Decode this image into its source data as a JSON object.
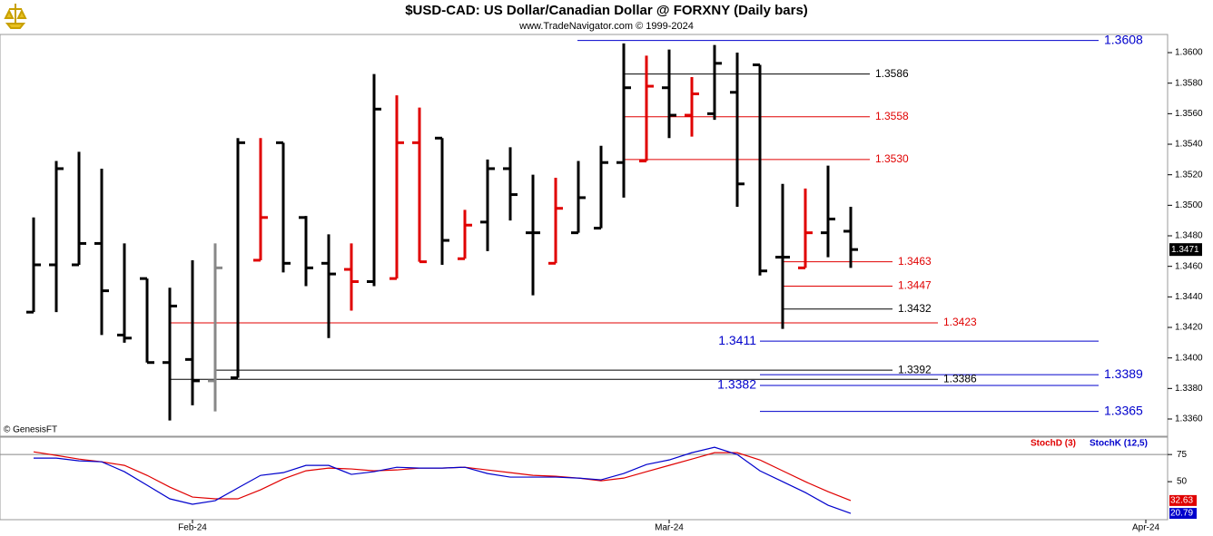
{
  "chart_data": [
    {
      "type": "ohlc",
      "title": "$USD-CAD:  US Dollar/Canadian Dollar @ FORXNY  (Daily bars)",
      "subtitle": "www.TradeNavigator.com © 1999-2024",
      "copyright": "© GenesisFT",
      "open": [
        1.343,
        1.3461,
        1.3461,
        1.3475,
        1.3415,
        1.3452,
        1.3397,
        1.3399,
        1.3385,
        1.3387,
        1.3464,
        1.3541,
        1.3492,
        1.3462,
        1.3458,
        1.345,
        1.3452,
        1.3541,
        1.3544,
        1.3465,
        1.3489,
        1.3524,
        1.3482,
        1.3462,
        1.3482,
        1.3485,
        1.3528,
        1.3529,
        1.3577,
        1.3559,
        1.356,
        1.3574,
        1.3592,
        1.3466,
        1.3459,
        1.3482,
        1.3483
      ],
      "high": [
        1.3492,
        1.3529,
        1.3535,
        1.3524,
        1.3475,
        1.3452,
        1.3446,
        1.3464,
        1.3475,
        1.3544,
        1.3544,
        1.3541,
        1.3493,
        1.3481,
        1.3475,
        1.3586,
        1.3572,
        1.3564,
        1.3544,
        1.3497,
        1.353,
        1.3538,
        1.352,
        1.3518,
        1.3529,
        1.3539,
        1.3606,
        1.3598,
        1.3602,
        1.3584,
        1.3605,
        1.36,
        1.3592,
        1.3514,
        1.3511,
        1.3526,
        1.3499
      ],
      "low": [
        1.343,
        1.343,
        1.3461,
        1.3415,
        1.341,
        1.3397,
        1.3359,
        1.3369,
        1.3365,
        1.3387,
        1.3464,
        1.3456,
        1.3447,
        1.3413,
        1.3431,
        1.3447,
        1.3452,
        1.3463,
        1.3461,
        1.3465,
        1.347,
        1.349,
        1.3441,
        1.3462,
        1.3482,
        1.3485,
        1.3505,
        1.3529,
        1.3544,
        1.3545,
        1.3556,
        1.3499,
        1.3454,
        1.3419,
        1.3459,
        1.3466,
        1.3459
      ],
      "close": [
        1.3461,
        1.3524,
        1.3475,
        1.3444,
        1.3413,
        1.3397,
        1.3434,
        1.3385,
        1.3459,
        1.3541,
        1.3492,
        1.3462,
        1.3459,
        1.3455,
        1.345,
        1.3563,
        1.3541,
        1.3463,
        1.3477,
        1.3487,
        1.3524,
        1.3507,
        1.3482,
        1.3498,
        1.3505,
        1.3528,
        1.3577,
        1.3578,
        1.3559,
        1.3573,
        1.3593,
        1.3514,
        1.3457,
        1.3466,
        1.3482,
        1.3491,
        1.3471
      ],
      "bar_colors": [
        "#000000",
        "#000000",
        "#000000",
        "#000000",
        "#000000",
        "#000000",
        "#000000",
        "#000000",
        "#888888",
        "#000000",
        "#e00000",
        "#000000",
        "#000000",
        "#000000",
        "#e00000",
        "#000000",
        "#e00000",
        "#e00000",
        "#000000",
        "#e00000",
        "#000000",
        "#000000",
        "#000000",
        "#e00000",
        "#000000",
        "#000000",
        "#000000",
        "#e00000",
        "#000000",
        "#e00000",
        "#000000",
        "#000000",
        "#000000",
        "#000000",
        "#e00000",
        "#000000",
        "#000000"
      ],
      "last_price": 1.3471,
      "levels": [
        {
          "value": 1.3608,
          "color": "#0000cc"
        },
        {
          "value": 1.3586,
          "color": "#000000"
        },
        {
          "value": 1.3558,
          "color": "#e00000"
        },
        {
          "value": 1.353,
          "label": "1.3530",
          "color": "#e00000"
        },
        {
          "value": 1.3463,
          "color": "#e00000"
        },
        {
          "value": 1.3447,
          "color": "#e00000"
        },
        {
          "value": 1.3432,
          "color": "#000000"
        },
        {
          "value": 1.3423,
          "color": "#e00000"
        },
        {
          "value": 1.3411,
          "color": "#0000cc"
        },
        {
          "value": 1.3392,
          "color": "#000000"
        },
        {
          "value": 1.3389,
          "color": "#0000cc"
        },
        {
          "value": 1.3386,
          "color": "#000000"
        },
        {
          "value": 1.3382,
          "color": "#0000cc"
        },
        {
          "value": 1.3365,
          "color": "#0000cc"
        }
      ],
      "xlim": [
        -1.48,
        49.96
      ],
      "xticks": [
        {
          "value": 7,
          "label": "Feb-24"
        },
        {
          "value": 28,
          "label": "Mar-24"
        },
        {
          "value": 49,
          "label": "Apr-24"
        }
      ],
      "ylim": [
        1.33493,
        1.36119
      ],
      "yticks": [
        {
          "value": 1.336,
          "label": "1.3360"
        },
        {
          "value": 1.338,
          "label": "1.3380"
        },
        {
          "value": 1.34,
          "label": "1.3400"
        },
        {
          "value": 1.342,
          "label": "1.3420"
        },
        {
          "value": 1.344,
          "label": "1.3440"
        },
        {
          "value": 1.346,
          "label": "1.3460"
        },
        {
          "value": 1.348,
          "label": "1.3480"
        },
        {
          "value": 1.35,
          "label": "1.3500"
        },
        {
          "value": 1.352,
          "label": "1.3520"
        },
        {
          "value": 1.354,
          "label": "1.3540"
        },
        {
          "value": 1.356,
          "label": "1.3560"
        },
        {
          "value": 1.358,
          "label": "1.3580"
        },
        {
          "value": 1.36,
          "label": "1.3600"
        }
      ]
    },
    {
      "type": "line",
      "series": [
        {
          "name": "StochD (3)",
          "color": "#e00000",
          "values": [
            77.5,
            74.2,
            70.8,
            68.3,
            65,
            55.8,
            45,
            35.8,
            34.2,
            34.2,
            42.5,
            52.5,
            60,
            62.5,
            61.7,
            60,
            60.8,
            62.5,
            62.5,
            63.3,
            60.8,
            58.3,
            55.8,
            55,
            53.3,
            50.8,
            53.3,
            59.2,
            65,
            70.8,
            76.7,
            76.7,
            70,
            60,
            50,
            40.8,
            32.63
          ]
        },
        {
          "name": "StochK (12,5)",
          "color": "#0000cc",
          "values": [
            71.7,
            71.7,
            69.2,
            68.3,
            59.2,
            46.7,
            34.2,
            29.2,
            32.5,
            44.2,
            55.8,
            58.3,
            65,
            65,
            56.7,
            59.2,
            63.3,
            62.5,
            62.5,
            63.3,
            57.5,
            54.2,
            54.2,
            54.2,
            53.3,
            51.7,
            57.5,
            65.8,
            70,
            76.7,
            81.7,
            75,
            60,
            50,
            40,
            28.3,
            20.79
          ]
        }
      ],
      "ylim": [
        15,
        91
      ],
      "yticks": [
        50,
        75
      ]
    }
  ]
}
